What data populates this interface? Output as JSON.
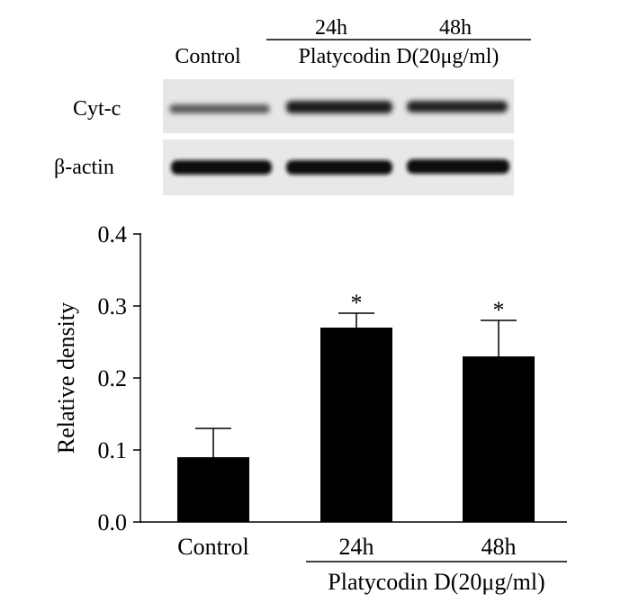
{
  "blot": {
    "header_times": [
      "24h",
      "48h"
    ],
    "control_label": "Control",
    "treatment_label": "Platycodin D(20μg/ml)",
    "rows": [
      {
        "label": "Cyt-c"
      },
      {
        "label": "β-actin"
      }
    ]
  },
  "chart_data": {
    "type": "bar",
    "categories": [
      "Control",
      "24h",
      "48h"
    ],
    "values": [
      0.09,
      0.27,
      0.23
    ],
    "error_plus": [
      0.04,
      0.02,
      0.05
    ],
    "significance": [
      "",
      "*",
      "*"
    ],
    "group_label": "Platycodin D(20μg/ml)",
    "ylabel": "Relative density",
    "ylim": [
      0,
      0.4
    ],
    "yticks": [
      "0.0",
      "0.1",
      "0.2",
      "0.3",
      "0.4"
    ],
    "bar_color": "#000000"
  }
}
